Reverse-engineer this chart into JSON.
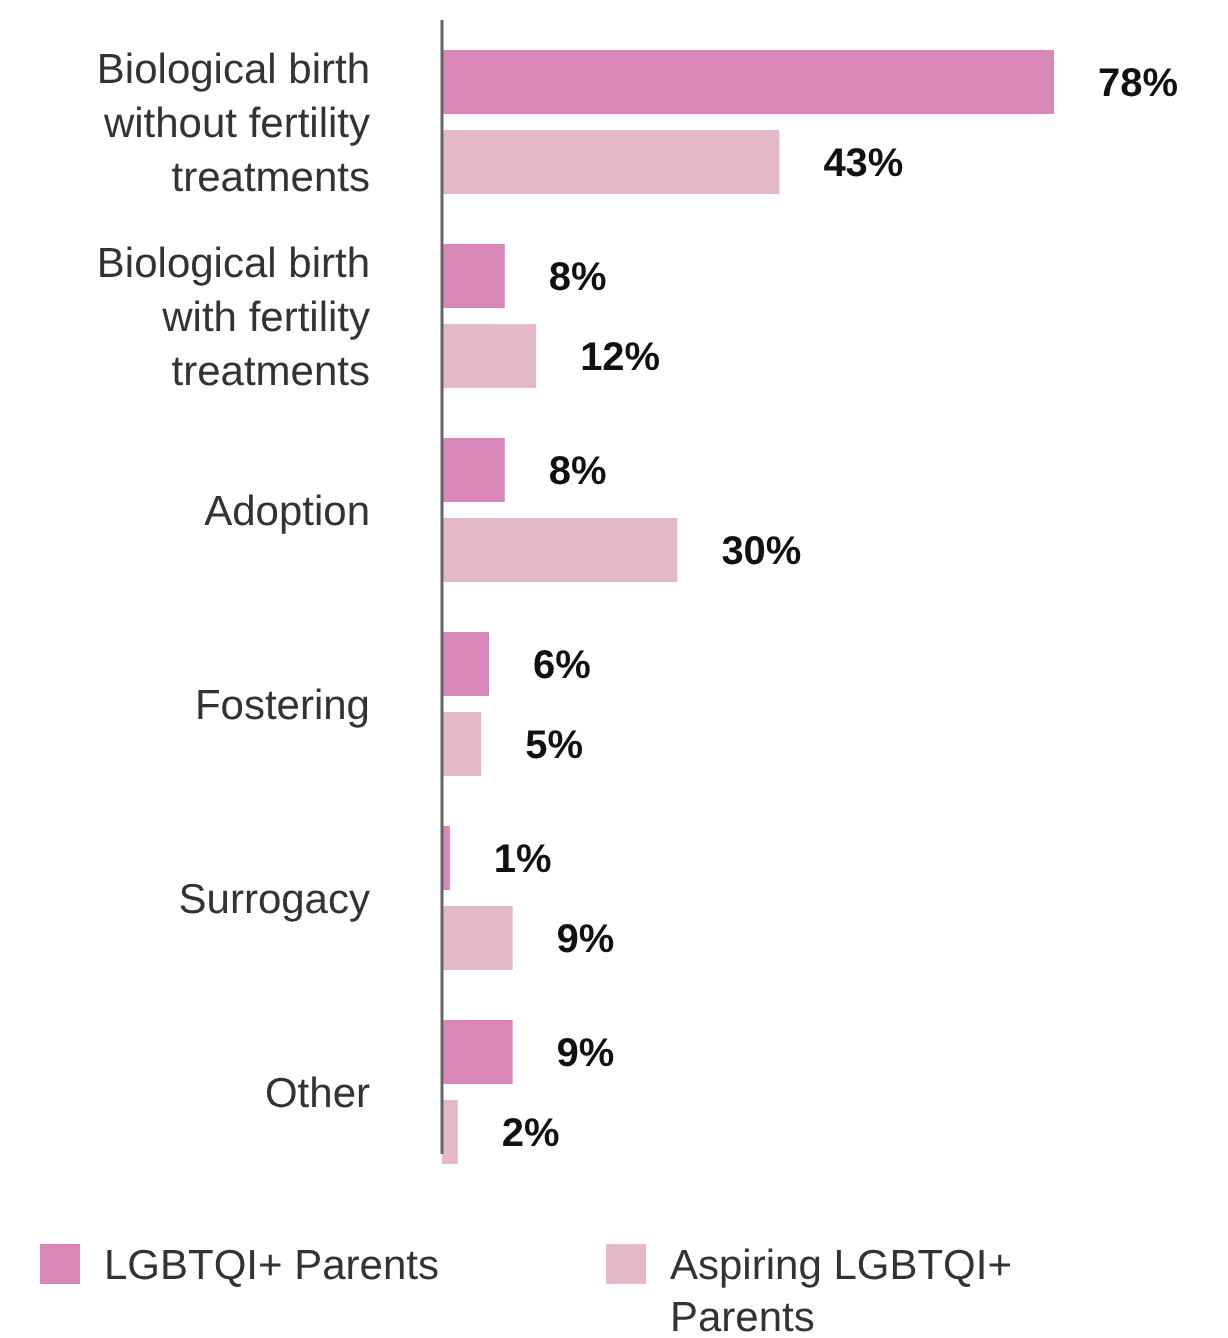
{
  "chart_data": {
    "type": "bar",
    "orientation": "horizontal",
    "categories": [
      "Biological birth without fertility treatments",
      "Biological birth with fertility treatments",
      "Adoption",
      "Fostering",
      "Surrogacy",
      "Other"
    ],
    "series": [
      {
        "name": "LGBTQI+ Parents",
        "color": "#d987b8",
        "values": [
          78,
          8,
          8,
          6,
          1,
          9
        ],
        "value_labels": [
          "78%",
          "8%",
          "8%",
          "6%",
          "1%",
          "9%"
        ]
      },
      {
        "name": "Aspiring LGBTQI+ Parents",
        "color": "#e4b8c8",
        "values": [
          43,
          12,
          30,
          5,
          9,
          2
        ],
        "value_labels": [
          "43%",
          "12%",
          "30%",
          "5%",
          "9%",
          "2%"
        ]
      }
    ],
    "legend": "bottom"
  }
}
